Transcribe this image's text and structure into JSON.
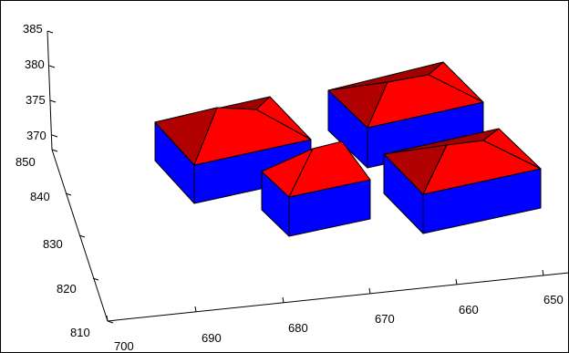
{
  "axes": {
    "z_ticks": [
      "385",
      "380",
      "375",
      "370"
    ],
    "y_ticks": [
      "850",
      "840",
      "830",
      "820",
      "810"
    ],
    "x_ticks": [
      "700",
      "690",
      "680",
      "670",
      "660",
      "650"
    ]
  },
  "colors": {
    "roof": "#ff0000",
    "roof_shadow": "#b00000",
    "roof_dark": "#a00000",
    "wall": "#0000ff",
    "wall_dark": "#0000e0",
    "edge": "#000000"
  },
  "buildings": [
    {
      "id": "building-top-left",
      "roof": "hip-roof",
      "walls": "blue"
    },
    {
      "id": "building-top-right",
      "roof": "hip-roof",
      "walls": "blue"
    },
    {
      "id": "building-center",
      "roof": "hip-roof",
      "walls": "blue"
    },
    {
      "id": "building-bottom-right",
      "roof": "hip-roof",
      "walls": "blue"
    }
  ]
}
